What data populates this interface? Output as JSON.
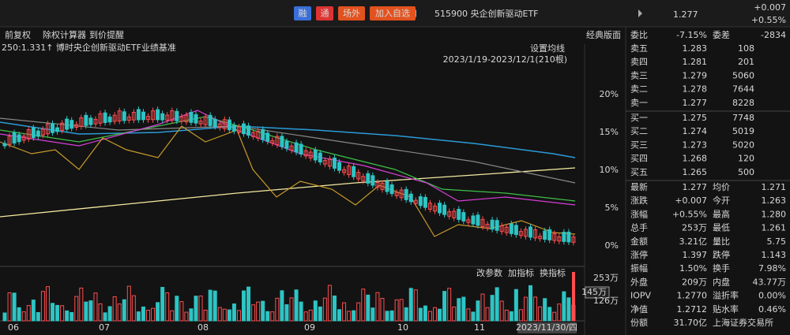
{
  "header": {
    "badges": [
      "融",
      "通",
      "场外",
      "加入自选"
    ],
    "title": "515900 央企创新驱动ETF",
    "price": "1.277",
    "change": "+0.007",
    "change_pct": "+0.55%"
  },
  "toolbar": {
    "items": [
      "前复权",
      "除权计算器",
      "到价提醒"
    ],
    "layout": "经典版面"
  },
  "legend": "250:1.331↑ 博时央企创新驱动ETF业绩基准",
  "settings": "设置均线",
  "range": "2023/1/19-2023/12/1(210根)",
  "y_labels": [
    "20%",
    "15%",
    "10%",
    "5%",
    "0%"
  ],
  "volume_tools": [
    "改参数",
    "加指标",
    "换指标"
  ],
  "volume_labels": [
    "253万",
    "145万",
    "126万"
  ],
  "x_labels": [
    "06",
    "07",
    "08",
    "09",
    "10",
    "11"
  ],
  "cursor_date": "2023/11/30/四",
  "ratio": [
    {
      "label": "委比",
      "value": "-7.15%",
      "color": "#1fc37c"
    },
    {
      "label": "委差",
      "value": "-2834",
      "color": "#1fc37c"
    }
  ],
  "sells": [
    {
      "label": "卖五",
      "price": "1.283",
      "volume": "108",
      "color": "#ff4d4f"
    },
    {
      "label": "卖四",
      "price": "1.281",
      "volume": "201",
      "color": "#ff4d4f"
    },
    {
      "label": "卖三",
      "price": "1.279",
      "volume": "5060",
      "color": "#ff4d4f"
    },
    {
      "label": "卖二",
      "price": "1.278",
      "volume": "7644",
      "color": "#ff4d4f"
    },
    {
      "label": "卖一",
      "price": "1.277",
      "volume": "8228",
      "color": "#ff4d4f"
    }
  ],
  "buys": [
    {
      "label": "买一",
      "price": "1.275",
      "volume": "7748",
      "color": "#ff4d4f"
    },
    {
      "label": "买二",
      "price": "1.274",
      "volume": "5019",
      "color": "#ff4d4f"
    },
    {
      "label": "买三",
      "price": "1.273",
      "volume": "5020",
      "color": "#ff4d4f"
    },
    {
      "label": "买四",
      "price": "1.268",
      "volume": "120",
      "color": "#1fc37c"
    },
    {
      "label": "买五",
      "price": "1.265",
      "volume": "500",
      "color": "#1fc37c"
    }
  ],
  "stats": [
    [
      {
        "label": "最新",
        "value": "1.277",
        "color": "#ff4d4f"
      },
      {
        "label": "均价",
        "value": "1.271",
        "color": "#ff4d4f"
      }
    ],
    [
      {
        "label": "涨跌",
        "value": "+0.007",
        "color": "#ff4d4f"
      },
      {
        "label": "今开",
        "value": "1.263",
        "color": "#1fc37c"
      }
    ],
    [
      {
        "label": "涨幅",
        "value": "+0.55%",
        "color": "#ff4d4f"
      },
      {
        "label": "最高",
        "value": "1.280",
        "color": "#ff4d4f"
      }
    ],
    [
      {
        "label": "总手",
        "value": "253万",
        "color": "#e6e6e6"
      },
      {
        "label": "最低",
        "value": "1.261",
        "color": "#1fc37c"
      }
    ],
    [
      {
        "label": "金额",
        "value": "3.21亿",
        "color": "#4fd3e8"
      },
      {
        "label": "量比",
        "value": "5.75",
        "color": "#e6e6e6"
      }
    ],
    [
      {
        "label": "涨停",
        "value": "1.397",
        "color": "#ff4d4f"
      },
      {
        "label": "跌停",
        "value": "1.143",
        "color": "#1fc37c"
      }
    ],
    [
      {
        "label": "振幅",
        "value": "1.50%",
        "color": "#e6e6e6"
      },
      {
        "label": "换手",
        "value": "7.98%",
        "color": "#e6e6e6"
      }
    ],
    [
      {
        "label": "外盘",
        "value": "209万",
        "color": "#ff4d4f"
      },
      {
        "label": "内盘",
        "value": "43.77万",
        "color": "#1fc37c"
      }
    ],
    [
      {
        "label": "IOPV",
        "value": "1.2770",
        "color": "#e6e6e6"
      },
      {
        "label": "溢折率",
        "value": "0.00%",
        "color": "#e6e6e6"
      }
    ],
    [
      {
        "label": "净值",
        "value": "1.2712",
        "color": "#e6e6e6"
      },
      {
        "label": "贴水率",
        "value": "0.46%",
        "color": "#e6e6e6"
      }
    ],
    [
      {
        "label": "份额",
        "value": "31.70亿",
        "color": "#e6e6e6"
      },
      {
        "label": "上海证券交易所",
        "value": null,
        "color": "#e6e6e6"
      }
    ]
  ]
}
